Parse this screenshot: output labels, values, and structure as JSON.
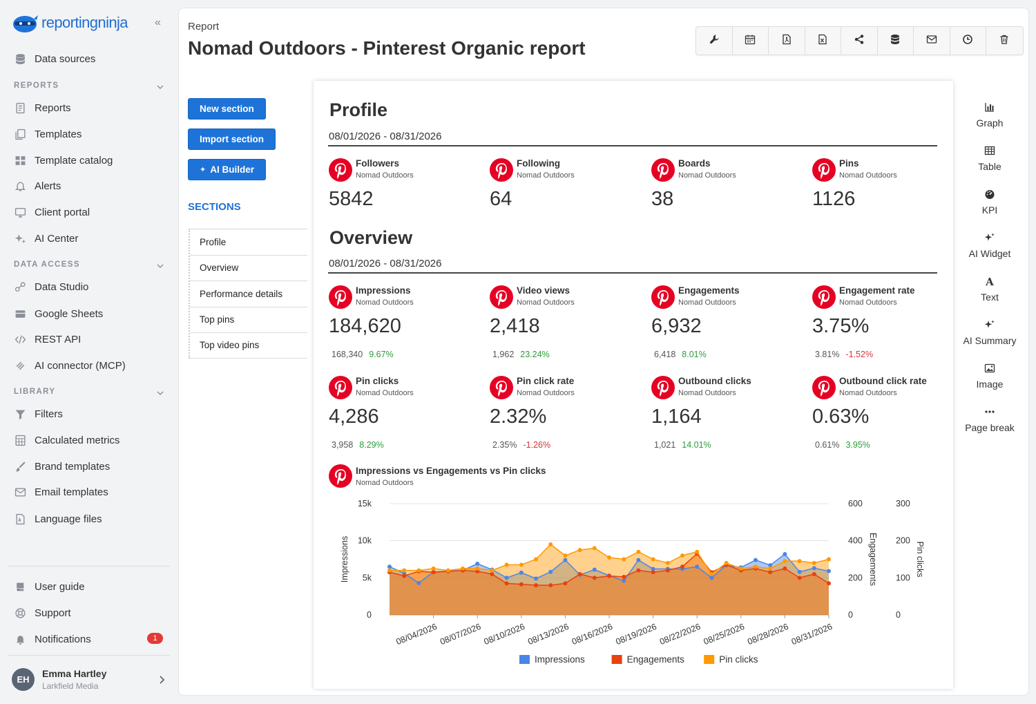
{
  "brand": {
    "logo_text": "reportingninja",
    "accent": "#1e73d9"
  },
  "sidebar": {
    "data_sources": "Data sources",
    "reports_label": "REPORTS",
    "reports": [
      "Reports",
      "Templates",
      "Template catalog",
      "Alerts",
      "Client portal",
      "AI Center"
    ],
    "data_access_label": "DATA ACCESS",
    "data_access": [
      "Data Studio",
      "Google Sheets",
      "REST API",
      "AI connector (MCP)"
    ],
    "library_label": "LIBRARY",
    "library": [
      "Filters",
      "Calculated metrics",
      "Brand templates",
      "Email templates",
      "Language files"
    ],
    "footer": [
      "User guide",
      "Support",
      "Notifications"
    ],
    "notifications_count": "1",
    "user": {
      "initials": "EH",
      "name": "Emma Hartley",
      "org": "Larkfield Media"
    }
  },
  "header": {
    "breadcrumb": "Report",
    "title": "Nomad Outdoors - Pinterest Organic report"
  },
  "toolbar": [
    "wrench-icon",
    "calendar-icon",
    "pdf-icon",
    "excel-icon",
    "share-icon",
    "database-icon",
    "email-icon",
    "clock-icon",
    "trash-icon"
  ],
  "actions": {
    "new_section": "New section",
    "import_section": "Import section",
    "ai_builder": "AI Builder"
  },
  "sections": {
    "title": "SECTIONS",
    "items": [
      "Profile",
      "Overview",
      "Performance details",
      "Top pins",
      "Top video pins"
    ]
  },
  "widgets": [
    "Graph",
    "Table",
    "KPI",
    "AI Widget",
    "Text",
    "AI Summary",
    "Image",
    "Page break"
  ],
  "report": {
    "profile": {
      "title": "Profile",
      "date": "08/01/2026 - 08/31/2026",
      "kpis": [
        {
          "name": "Followers",
          "sub": "Nomad Outdoors",
          "value": "5842"
        },
        {
          "name": "Following",
          "sub": "Nomad Outdoors",
          "value": "64"
        },
        {
          "name": "Boards",
          "sub": "Nomad Outdoors",
          "value": "38"
        },
        {
          "name": "Pins",
          "sub": "Nomad Outdoors",
          "value": "1126"
        }
      ]
    },
    "overview": {
      "title": "Overview",
      "date": "08/01/2026 - 08/31/2026",
      "kpis": [
        {
          "name": "Impressions",
          "sub": "Nomad Outdoors",
          "value": "184,620",
          "prev": "168,340",
          "change": "9.67%",
          "dir": "pos"
        },
        {
          "name": "Video views",
          "sub": "Nomad Outdoors",
          "value": "2,418",
          "prev": "1,962",
          "change": "23.24%",
          "dir": "pos"
        },
        {
          "name": "Engagements",
          "sub": "Nomad Outdoors",
          "value": "6,932",
          "prev": "6,418",
          "change": "8.01%",
          "dir": "pos"
        },
        {
          "name": "Engagement rate",
          "sub": "Nomad Outdoors",
          "value": "3.75%",
          "prev": "3.81%",
          "change": "-1.52%",
          "dir": "neg"
        },
        {
          "name": "Pin clicks",
          "sub": "Nomad Outdoors",
          "value": "4,286",
          "prev": "3,958",
          "change": "8.29%",
          "dir": "pos"
        },
        {
          "name": "Pin click rate",
          "sub": "Nomad Outdoors",
          "value": "2.32%",
          "prev": "2.35%",
          "change": "-1.26%",
          "dir": "neg"
        },
        {
          "name": "Outbound clicks",
          "sub": "Nomad Outdoors",
          "value": "1,164",
          "prev": "1,021",
          "change": "14.01%",
          "dir": "pos"
        },
        {
          "name": "Outbound click rate",
          "sub": "Nomad Outdoors",
          "value": "0.63%",
          "prev": "0.61%",
          "change": "3.95%",
          "dir": "pos"
        }
      ]
    },
    "chart_head": {
      "name": "Impressions vs Engagements vs Pin clicks",
      "sub": "Nomad Outdoors"
    }
  },
  "chart_data": {
    "type": "area",
    "title": "Impressions vs Engagements vs Pin clicks",
    "x": [
      "08/01/2026",
      "08/02/2026",
      "08/03/2026",
      "08/04/2026",
      "08/05/2026",
      "08/06/2026",
      "08/07/2026",
      "08/08/2026",
      "08/09/2026",
      "08/10/2026",
      "08/11/2026",
      "08/12/2026",
      "08/13/2026",
      "08/14/2026",
      "08/15/2026",
      "08/16/2026",
      "08/17/2026",
      "08/18/2026",
      "08/19/2026",
      "08/20/2026",
      "08/21/2026",
      "08/22/2026",
      "08/23/2026",
      "08/24/2026",
      "08/25/2026",
      "08/26/2026",
      "08/27/2026",
      "08/28/2026",
      "08/29/2026",
      "08/30/2026",
      "08/31/2026"
    ],
    "xticks": [
      "08/04/2026",
      "08/07/2026",
      "08/10/2026",
      "08/13/2026",
      "08/16/2026",
      "08/19/2026",
      "08/22/2026",
      "08/25/2026",
      "08/28/2026",
      "08/31/2026"
    ],
    "series": [
      {
        "name": "Impressions",
        "axis": "Impressions",
        "color": "#4a86e8",
        "ylim": [
          0,
          15000
        ],
        "values": [
          6500,
          5600,
          4300,
          5800,
          5900,
          6000,
          6900,
          6100,
          5000,
          5700,
          4900,
          5800,
          7400,
          5400,
          6100,
          5300,
          4600,
          7400,
          6200,
          6200,
          6200,
          6500,
          5000,
          6700,
          6400,
          7400,
          6700,
          8200,
          5800,
          6300,
          5900
        ]
      },
      {
        "name": "Engagements",
        "axis": "Engagements",
        "color": "#e8420e",
        "ylim": [
          0,
          600
        ],
        "values": [
          230,
          210,
          235,
          230,
          235,
          240,
          235,
          220,
          170,
          165,
          160,
          160,
          170,
          220,
          200,
          210,
          205,
          240,
          230,
          240,
          260,
          330,
          230,
          270,
          240,
          250,
          230,
          250,
          200,
          220,
          170
        ]
      },
      {
        "name": "Pin clicks",
        "axis": "Pin clicks",
        "color": "#ff9900",
        "ylim": [
          0,
          300
        ],
        "values": [
          120,
          120,
          120,
          125,
          120,
          125,
          125,
          120,
          135,
          135,
          150,
          190,
          160,
          175,
          180,
          155,
          150,
          170,
          150,
          140,
          160,
          170,
          110,
          140,
          125,
          130,
          125,
          145,
          145,
          140,
          150
        ]
      }
    ],
    "yticks_left": [
      "15k",
      "10k",
      "5k",
      "0"
    ],
    "yticks_mid": [
      "600",
      "400",
      "200",
      "0"
    ],
    "yticks_right": [
      "300",
      "200",
      "100",
      "0"
    ],
    "ylabel_left": "Impressions",
    "ylabel_mid": "Engagements",
    "ylabel_right": "Pin clicks",
    "legend": "bottom-center",
    "grid": true
  }
}
